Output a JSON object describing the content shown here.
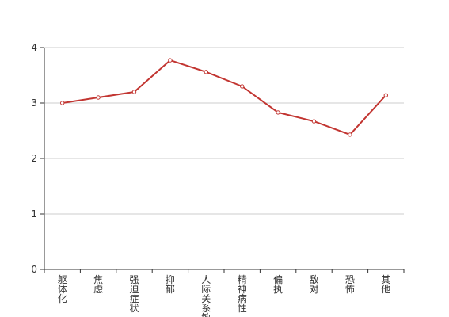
{
  "chart_data": {
    "type": "line",
    "categories": [
      "躯体化",
      "焦虑",
      "强迫症状",
      "抑郁",
      "人际关系敏感",
      "精神病性",
      "偏执",
      "敌对",
      "恐怖",
      "其他"
    ],
    "series": [
      {
        "values": [
          3.0,
          3.1,
          3.2,
          3.77,
          3.56,
          3.3,
          2.83,
          2.67,
          2.43,
          3.14
        ],
        "color": "#c23531"
      }
    ],
    "ylim": [
      0,
      4
    ],
    "yticks": [
      "0",
      "1",
      "2",
      "3",
      "4"
    ],
    "grid": true,
    "legend": "none",
    "colors": {
      "line": "#c23531",
      "grid": "#cccccc",
      "axis": "#333333",
      "text": "#333333"
    }
  }
}
